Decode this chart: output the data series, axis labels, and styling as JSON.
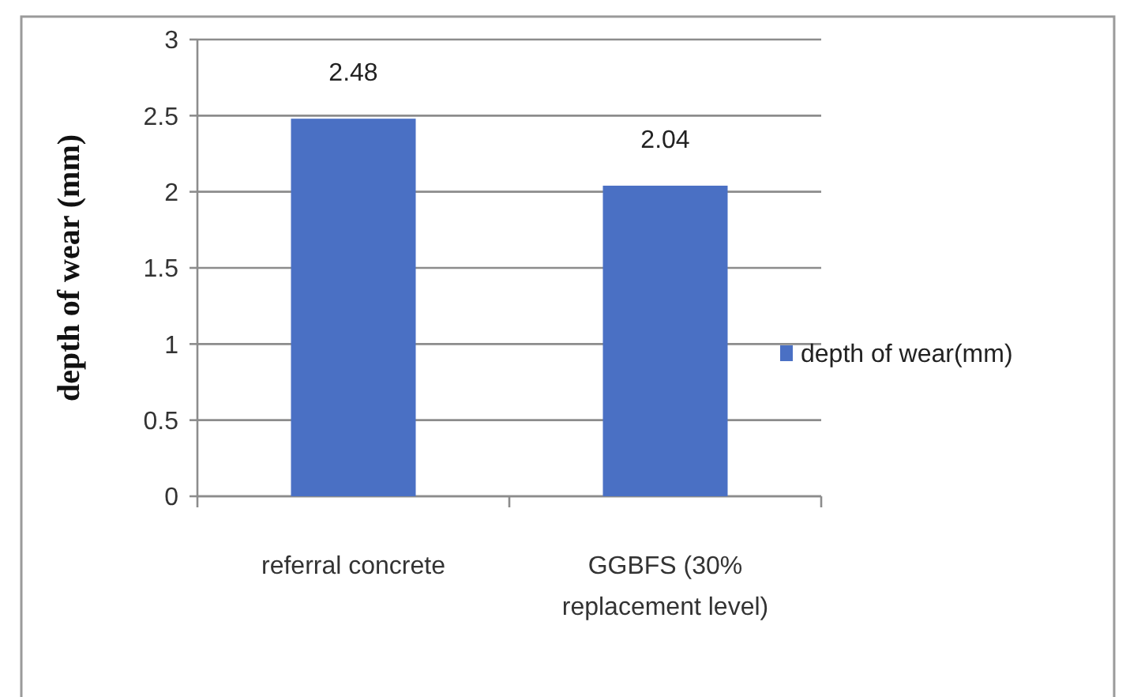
{
  "chart_data": {
    "type": "bar",
    "ylabel": "depth of wear (mm)",
    "categories": [
      "referral concrete",
      "GGBFS (30% replacement level)"
    ],
    "series": [
      {
        "name": "depth of wear(mm)",
        "color": "#4a70c4",
        "values": [
          2.48,
          2.04
        ]
      }
    ],
    "ylim": [
      0,
      3
    ],
    "yticks": [
      0,
      0.5,
      1,
      1.5,
      2,
      2.5,
      3
    ],
    "grid": "y",
    "legend": "right",
    "data_labels": true
  }
}
